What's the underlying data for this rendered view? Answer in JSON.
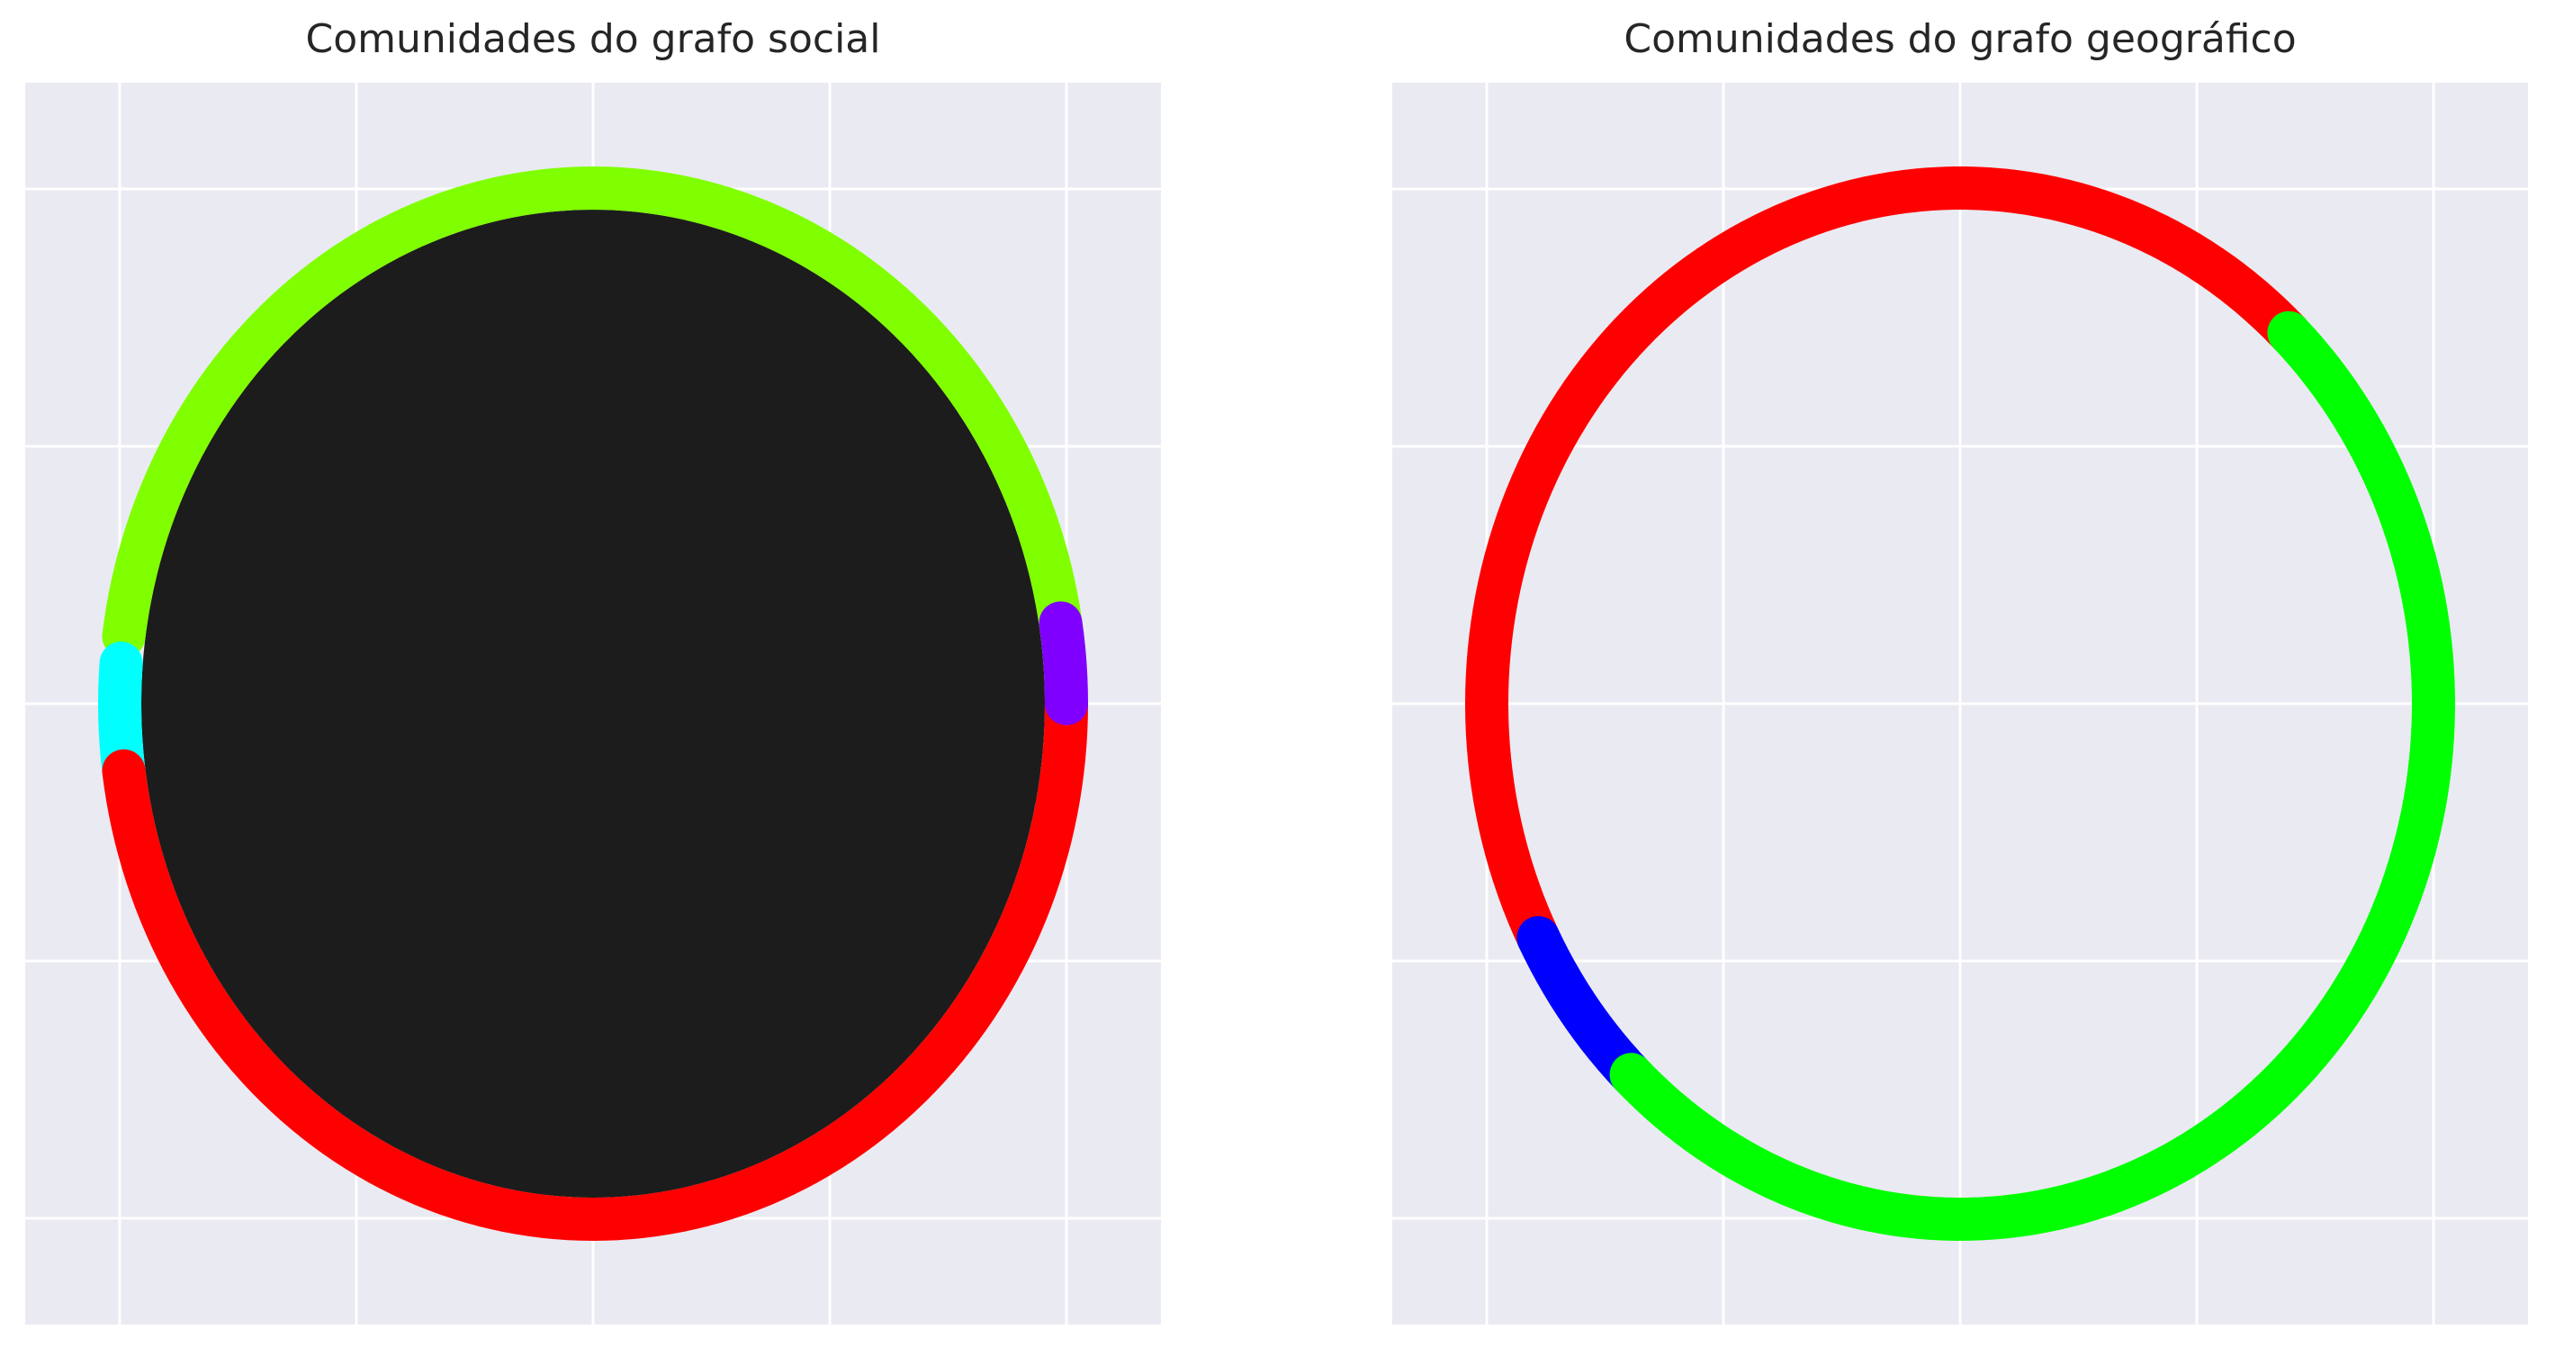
{
  "panels": [
    {
      "id": "social",
      "title": "Comunidades do grafo social",
      "community_arcs": [
        {
          "community": 1,
          "color": "#7fff00",
          "start_deg": 4.5,
          "end_deg": 172.5
        },
        {
          "community": 2,
          "color": "#00ffff",
          "start_deg": 175.5,
          "end_deg": 187.5
        },
        {
          "community": 3,
          "color": "#ff0000",
          "start_deg": 187.5,
          "end_deg": 360.0
        },
        {
          "community": 4,
          "color": "#7f00ff",
          "start_deg": 0.0,
          "end_deg": 9.0
        }
      ],
      "dense_edges_fill": "#1c1c1c"
    },
    {
      "id": "geo",
      "title": "Comunidades do grafo geográfico",
      "community_arcs": [
        {
          "community": 1,
          "color": "#ff0000",
          "start_deg": 46.0,
          "end_deg": 207.0
        },
        {
          "community": 2,
          "color": "#0000ff",
          "start_deg": 207.0,
          "end_deg": 226.0
        },
        {
          "community": 3,
          "color": "#00ff00",
          "start_deg": 226.0,
          "end_deg": 406.0
        }
      ],
      "dense_edges_fill": null
    }
  ],
  "style": {
    "plot_background": "#eaeaf2",
    "grid_color": "#ffffff"
  }
}
